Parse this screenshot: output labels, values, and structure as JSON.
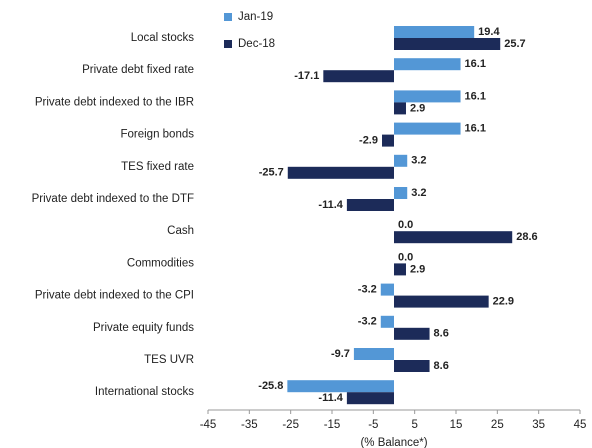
{
  "chart_data": {
    "type": "barh",
    "x_label": "(% Balance*)",
    "categories": [
      "Local stocks",
      "Private debt fixed rate",
      "Private debt indexed to the IBR",
      "Foreign bonds",
      "TES fixed rate",
      "Private debt indexed to the DTF",
      "Cash",
      "Commodities",
      "Private debt indexed to the CPI",
      "Private equity funds",
      "TES UVR",
      "International stocks"
    ],
    "series": [
      {
        "name": "Jan-19",
        "color": "#5397d6",
        "values": [
          19.4,
          16.1,
          16.1,
          16.1,
          3.2,
          3.2,
          0,
          0,
          -3.2,
          -3.2,
          -9.7,
          -25.8
        ],
        "value_labels": [
          "19.4",
          "16.1",
          "16.1",
          "16.1",
          "3.2",
          "3.2",
          "0.0",
          "0.0",
          "-3.2",
          "-3.2",
          "-9.7",
          "-25.8"
        ]
      },
      {
        "name": "Dec-18",
        "color": "#1c2b59",
        "values": [
          25.7,
          -17.1,
          2.9,
          -2.9,
          -25.7,
          -11.4,
          28.6,
          2.9,
          22.9,
          8.6,
          8.6,
          -11.4
        ],
        "value_labels": [
          "25.7",
          "-17.1",
          "2.9",
          "-2.9",
          "-25.7",
          "-11.4",
          "28.6",
          "2.9",
          "22.9",
          "8.6",
          "8.6",
          "-11.4"
        ]
      }
    ],
    "xlim": [
      -45,
      45
    ],
    "xticks": [
      -45,
      -35,
      -25,
      -15,
      -5,
      5,
      15,
      25,
      35,
      45
    ],
    "legend": "top"
  }
}
